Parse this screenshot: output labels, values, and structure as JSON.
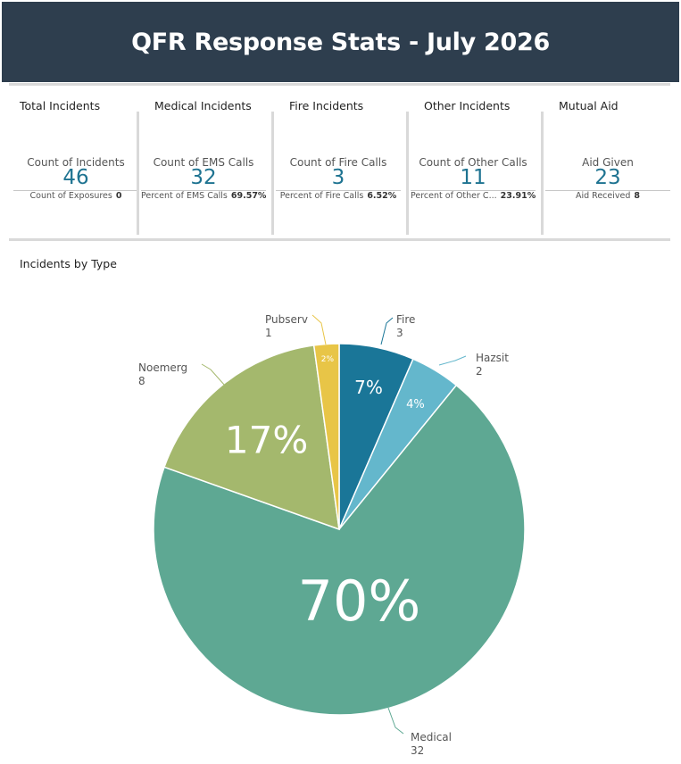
{
  "page_title": "QFR Response Stats - July 2026",
  "kpis": [
    {
      "heading": "Total Incidents",
      "label": "Count of Incidents",
      "value": "46",
      "foot_label": "Count of Exposures",
      "foot_value": "0"
    },
    {
      "heading": "Medical Incidents",
      "label": "Count of EMS Calls",
      "value": "32",
      "foot_label": "Percent of EMS Calls",
      "foot_value": "69.57%"
    },
    {
      "heading": "Fire Incidents",
      "label": "Count of Fire Calls",
      "value": "3",
      "foot_label": "Percent of Fire Calls",
      "foot_value": "6.52%"
    },
    {
      "heading": "Other Incidents",
      "label": "Count of Other Calls",
      "value": "11",
      "foot_label": "Percent of Other C...",
      "foot_value": "23.91%"
    },
    {
      "heading": "Mutual Aid",
      "label": "Aid Given",
      "value": "23",
      "foot_label": "Aid Received",
      "foot_value": "8"
    }
  ],
  "section_title": "Incidents by Type",
  "colors": {
    "title_bg": "#2e3e4e",
    "kpi_value": "#1e7391",
    "fire": "#1a7698",
    "hazsit": "#64b7cc",
    "medical": "#5ea893",
    "noemerg": "#a4b86d",
    "pubserv": "#e8c547"
  },
  "chart_data": {
    "type": "pie",
    "title": "Incidents by Type",
    "slices": [
      {
        "label": "Fire",
        "value": 3,
        "percent_label": "7%",
        "color": "#1a7698"
      },
      {
        "label": "Hazsit",
        "value": 2,
        "percent_label": "4%",
        "color": "#64b7cc"
      },
      {
        "label": "Medical",
        "value": 32,
        "percent_label": "70%",
        "color": "#5ea893"
      },
      {
        "label": "Noemerg",
        "value": 8,
        "percent_label": "17%",
        "color": "#a4b86d"
      },
      {
        "label": "Pubserv",
        "value": 1,
        "percent_label": "2%",
        "color": "#e8c547"
      }
    ]
  }
}
